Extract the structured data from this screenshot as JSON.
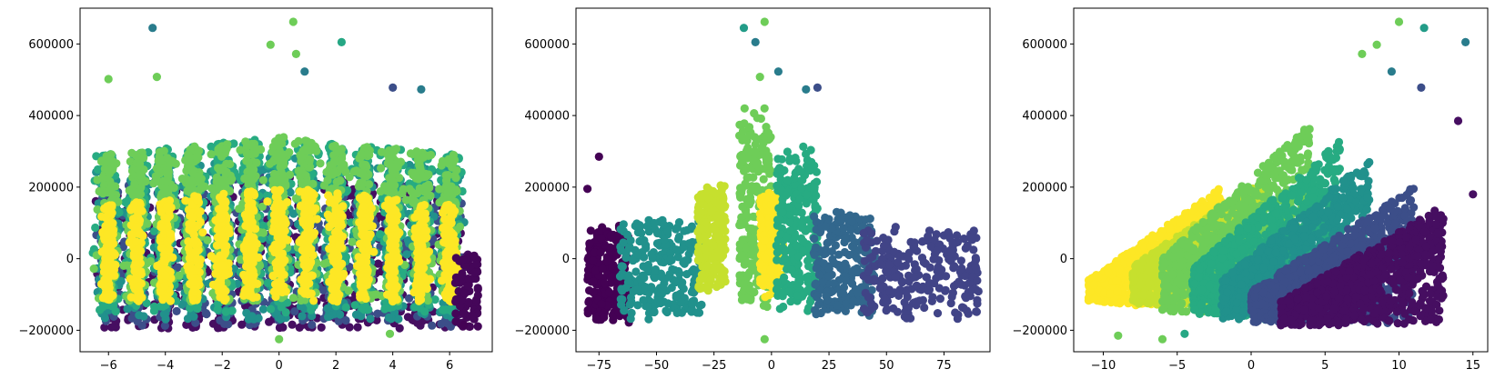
{
  "chart_data": [
    {
      "type": "scatter",
      "title": "",
      "xlabel": "",
      "ylabel": "",
      "xlim": [
        -7.0,
        7.5
      ],
      "ylim": [
        -260000,
        700000
      ],
      "xticks": [
        -6,
        -4,
        -2,
        0,
        2,
        4,
        6
      ],
      "yticks": [
        -200000,
        0,
        200000,
        400000,
        600000
      ],
      "xtick_labels": [
        "−6",
        "−4",
        "−2",
        "0",
        "2",
        "4",
        "6"
      ],
      "ytick_labels": [
        "−200000",
        "0",
        "200000",
        "400000",
        "600000"
      ],
      "colormap": "viridis",
      "grid": false,
      "legend": "none",
      "pattern": "vertical-stripes",
      "stripe_centers": [
        -6.0,
        -5.0,
        -4.0,
        -3.0,
        -2.0,
        -1.0,
        0.0,
        1.0,
        2.0,
        3.0,
        4.0,
        5.0,
        6.0
      ],
      "stripe_width": 0.45,
      "y_core": [
        -170000,
        320000
      ],
      "outliers": [
        {
          "x": -4.45,
          "y": 645000,
          "c": 0.45
        },
        {
          "x": 0.5,
          "y": 662000,
          "c": 0.78
        },
        {
          "x": -0.3,
          "y": 598000,
          "c": 0.78
        },
        {
          "x": 0.6,
          "y": 572000,
          "c": 0.78
        },
        {
          "x": 2.2,
          "y": 605000,
          "c": 0.6
        },
        {
          "x": 0.9,
          "y": 523000,
          "c": 0.45
        },
        {
          "x": -6.0,
          "y": 502000,
          "c": 0.78
        },
        {
          "x": -4.3,
          "y": 508000,
          "c": 0.78
        },
        {
          "x": 4.0,
          "y": 478000,
          "c": 0.3
        },
        {
          "x": 5.0,
          "y": 473000,
          "c": 0.45
        },
        {
          "x": 0.0,
          "y": -225000,
          "c": 0.78
        },
        {
          "x": 3.9,
          "y": -210000,
          "c": 0.78
        },
        {
          "x": 6.5,
          "y": -185000,
          "c": 0.0
        }
      ]
    },
    {
      "type": "scatter",
      "title": "",
      "xlabel": "",
      "ylabel": "",
      "xlim": [
        -85,
        95
      ],
      "ylim": [
        -260000,
        700000
      ],
      "xticks": [
        -75,
        -50,
        -25,
        0,
        25,
        50,
        75
      ],
      "yticks": [
        -200000,
        0,
        200000,
        400000,
        600000
      ],
      "xtick_labels": [
        "−75",
        "−50",
        "−25",
        "0",
        "25",
        "50",
        "75"
      ],
      "ytick_labels": [
        "−200000",
        "0",
        "200000",
        "400000",
        "600000"
      ],
      "colormap": "viridis",
      "grid": false,
      "legend": "none",
      "pattern": "vertical-bands",
      "bands": [
        {
          "x": [
            -80,
            -62
          ],
          "y": [
            -180000,
            110000
          ],
          "c": 0.0
        },
        {
          "x": [
            -66,
            -30
          ],
          "y": [
            -170000,
            130000
          ],
          "c": 0.5
        },
        {
          "x": [
            -32,
            -20
          ],
          "y": [
            -100000,
            220000
          ],
          "c": 0.92
        },
        {
          "x": [
            -14,
            0
          ],
          "y": [
            -150000,
            420000
          ],
          "c": 0.78
        },
        {
          "x": [
            -5,
            5
          ],
          "y": [
            -110000,
            200000
          ],
          "c": 1.0
        },
        {
          "x": [
            2,
            20
          ],
          "y": [
            -160000,
            330000
          ],
          "c": 0.62
        },
        {
          "x": [
            18,
            45
          ],
          "y": [
            -170000,
            150000
          ],
          "c": 0.4
        },
        {
          "x": [
            40,
            90
          ],
          "y": [
            -170000,
            100000
          ],
          "c": 0.25
        }
      ],
      "outliers": [
        {
          "x": -12,
          "y": 645000,
          "c": 0.55
        },
        {
          "x": -7,
          "y": 605000,
          "c": 0.45
        },
        {
          "x": -3,
          "y": 662000,
          "c": 0.78
        },
        {
          "x": 3,
          "y": 523000,
          "c": 0.45
        },
        {
          "x": -5,
          "y": 508000,
          "c": 0.78
        },
        {
          "x": 15,
          "y": 473000,
          "c": 0.45
        },
        {
          "x": 20,
          "y": 478000,
          "c": 0.3
        },
        {
          "x": 88,
          "y": 78000,
          "c": 0.25
        },
        {
          "x": -80,
          "y": 195000,
          "c": 0.0
        },
        {
          "x": -75,
          "y": 285000,
          "c": 0.0
        },
        {
          "x": -3,
          "y": -225000,
          "c": 0.78
        }
      ]
    },
    {
      "type": "scatter",
      "title": "",
      "xlabel": "",
      "ylabel": "",
      "xlim": [
        -12,
        16
      ],
      "ylim": [
        -260000,
        700000
      ],
      "xticks": [
        -10,
        -5,
        0,
        5,
        10,
        15
      ],
      "yticks": [
        -200000,
        0,
        200000,
        400000,
        600000
      ],
      "xtick_labels": [
        "−10",
        "−5",
        "0",
        "5",
        "10",
        "15"
      ],
      "ytick_labels": [
        "−200000",
        "0",
        "200000",
        "400000",
        "600000"
      ],
      "colormap": "viridis",
      "grid": false,
      "legend": "none",
      "pattern": "diagonal-bands",
      "bands": [
        {
          "x": [
            -11,
            -2
          ],
          "y_bottom_at_left": -120000,
          "y_top_at_left": -60000,
          "y_bottom_at_right": -150000,
          "y_top_at_right": 200000,
          "c": 1.0
        },
        {
          "x": [
            -8,
            1
          ],
          "y_bottom_at_left": -130000,
          "y_top_at_left": -20000,
          "y_bottom_at_right": -140000,
          "y_top_at_right": 230000,
          "c": 0.92
        },
        {
          "x": [
            -6,
            4
          ],
          "y_bottom_at_left": -150000,
          "y_top_at_left": 0,
          "y_bottom_at_right": -150000,
          "y_top_at_right": 380000,
          "c": 0.78
        },
        {
          "x": [
            -4,
            6
          ],
          "y_bottom_at_left": -160000,
          "y_top_at_left": -30000,
          "y_bottom_at_right": -160000,
          "y_top_at_right": 330000,
          "c": 0.62
        },
        {
          "x": [
            -2,
            8
          ],
          "y_bottom_at_left": -170000,
          "y_top_at_left": -60000,
          "y_bottom_at_right": -170000,
          "y_top_at_right": 280000,
          "c": 0.5
        },
        {
          "x": [
            0,
            11
          ],
          "y_bottom_at_left": -180000,
          "y_top_at_left": -90000,
          "y_bottom_at_right": -180000,
          "y_top_at_right": 200000,
          "c": 0.3
        },
        {
          "x": [
            2,
            13
          ],
          "y_bottom_at_left": -190000,
          "y_top_at_left": -120000,
          "y_bottom_at_right": -180000,
          "y_top_at_right": 150000,
          "c": 0.05
        }
      ],
      "outliers": [
        {
          "x": 10.0,
          "y": 662000,
          "c": 0.78
        },
        {
          "x": 11.7,
          "y": 645000,
          "c": 0.55
        },
        {
          "x": 14.5,
          "y": 605000,
          "c": 0.45
        },
        {
          "x": 7.5,
          "y": 572000,
          "c": 0.78
        },
        {
          "x": 8.5,
          "y": 598000,
          "c": 0.78
        },
        {
          "x": 9.5,
          "y": 523000,
          "c": 0.45
        },
        {
          "x": 11.5,
          "y": 478000,
          "c": 0.3
        },
        {
          "x": 14.0,
          "y": 385000,
          "c": 0.05
        },
        {
          "x": 15.0,
          "y": 180000,
          "c": 0.05
        },
        {
          "x": -9.0,
          "y": -215000,
          "c": 0.78
        },
        {
          "x": -6.0,
          "y": -225000,
          "c": 0.78
        },
        {
          "x": -4.5,
          "y": -210000,
          "c": 0.6
        }
      ]
    }
  ]
}
